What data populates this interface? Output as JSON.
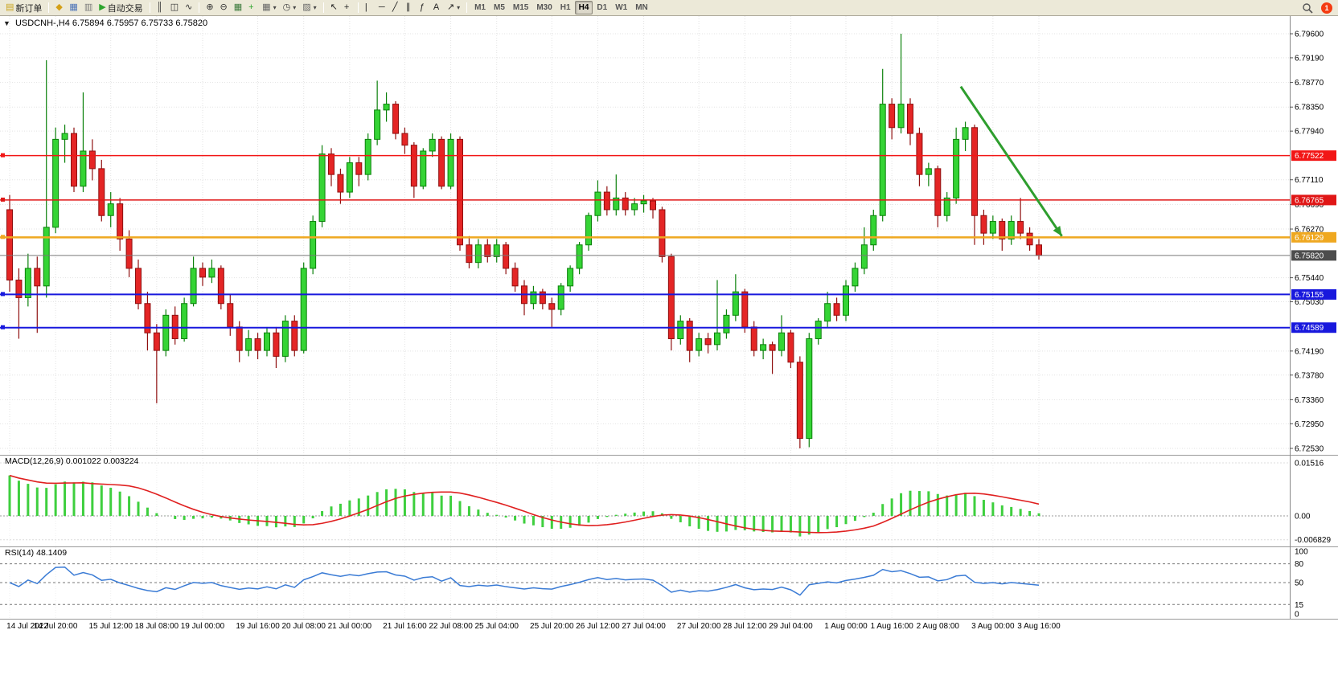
{
  "toolbar": {
    "badge": "1",
    "items": [
      {
        "type": "btn",
        "name": "new-order-button",
        "glyph": "▤",
        "color": "#caa41c",
        "label": "新订单"
      },
      {
        "type": "sep"
      },
      {
        "type": "btn",
        "name": "quick-launch-button",
        "glyph": "◆",
        "color": "#d4a017"
      },
      {
        "type": "btn",
        "name": "charts-window-button",
        "glyph": "▦",
        "color": "#4a72b8"
      },
      {
        "type": "btn",
        "name": "market-watch-button",
        "glyph": "▥",
        "color": "#7a7a7a"
      },
      {
        "type": "btn",
        "name": "auto-trading-button",
        "glyph": "▶",
        "color": "#2ea52e",
        "label": "自动交易"
      },
      {
        "type": "sep"
      },
      {
        "type": "btn",
        "name": "bar-chart-button",
        "glyph": "║",
        "color": "#333"
      },
      {
        "type": "btn",
        "name": "candlestick-chart-button",
        "glyph": "◫",
        "color": "#333"
      },
      {
        "type": "btn",
        "name": "line-chart-button",
        "glyph": "∿",
        "color": "#333"
      },
      {
        "type": "sep"
      },
      {
        "type": "btn",
        "name": "zoom-in-button",
        "glyph": "⊕",
        "color": "#333"
      },
      {
        "type": "btn",
        "name": "zoom-out-button",
        "glyph": "⊖",
        "color": "#333"
      },
      {
        "type": "btn",
        "name": "tile-windows-button",
        "glyph": "▦",
        "color": "#3b7a3b"
      },
      {
        "type": "btn",
        "name": "indicators-button",
        "glyph": "+",
        "color": "#2ea52e"
      },
      {
        "type": "btn",
        "name": "new-chart-dropdown",
        "glyph": "▦",
        "color": "#666",
        "dropdown": "▾"
      },
      {
        "type": "btn",
        "name": "periods-dropdown",
        "glyph": "◷",
        "color": "#444",
        "dropdown": "▾"
      },
      {
        "type": "btn",
        "name": "templates-dropdown",
        "glyph": "▨",
        "color": "#666",
        "dropdown": "▾"
      },
      {
        "type": "sep"
      },
      {
        "type": "btn",
        "name": "cursor-button",
        "glyph": "↖",
        "color": "#222"
      },
      {
        "type": "btn",
        "name": "crosshair-button",
        "glyph": "+",
        "color": "#222"
      },
      {
        "type": "sep"
      },
      {
        "type": "btn",
        "name": "vertical-line-button",
        "glyph": "|",
        "color": "#222"
      },
      {
        "type": "btn",
        "name": "horizontal-line-button",
        "glyph": "─",
        "color": "#222"
      },
      {
        "type": "btn",
        "name": "trendline-button",
        "glyph": "╱",
        "color": "#222"
      },
      {
        "type": "btn",
        "name": "channel-button",
        "glyph": "∥",
        "color": "#222"
      },
      {
        "type": "btn",
        "name": "fibonacci-button",
        "glyph": "ƒ",
        "color": "#222"
      },
      {
        "type": "btn",
        "name": "text-button",
        "glyph": "A",
        "color": "#222"
      },
      {
        "type": "btn",
        "name": "arrows-dropdown",
        "glyph": "↗",
        "color": "#222",
        "dropdown": "▾"
      },
      {
        "type": "sep"
      },
      {
        "type": "tf",
        "name": "timeframe-m1",
        "label": "M1"
      },
      {
        "type": "tf",
        "name": "timeframe-m5",
        "label": "M5"
      },
      {
        "type": "tf",
        "name": "timeframe-m15",
        "label": "M15"
      },
      {
        "type": "tf",
        "name": "timeframe-m30",
        "label": "M30"
      },
      {
        "type": "tf",
        "name": "timeframe-h1",
        "label": "H1"
      },
      {
        "type": "tf",
        "name": "timeframe-h4",
        "label": "H4",
        "active": true
      },
      {
        "type": "tf",
        "name": "timeframe-d1",
        "label": "D1"
      },
      {
        "type": "tf",
        "name": "timeframe-w1",
        "label": "W1"
      },
      {
        "type": "tf",
        "name": "timeframe-mn",
        "label": "MN"
      }
    ]
  },
  "chart_data": {
    "type": "candlestick",
    "title": "USDCNH-,H4",
    "ohlc": "6.75894 6.75957 6.75733 6.75820",
    "symbol": "USDCNH-",
    "period": "H4",
    "colors": {
      "up": "#35d435",
      "up_border": "#0a800a",
      "down": "#e42525",
      "down_border": "#8f1010",
      "grid": "#e3e3e3"
    },
    "price_ticks": [
      "6.79600",
      "6.79190",
      "6.78770",
      "6.78350",
      "6.77940",
      "6.77110",
      "6.76690",
      "6.76270",
      "6.75440",
      "6.75030",
      "6.74190",
      "6.73780",
      "6.73360",
      "6.72950",
      "6.72530"
    ],
    "hlines": [
      {
        "price": 6.77522,
        "label": "6.77522",
        "color": "#f21616",
        "width": 1.5
      },
      {
        "price": 6.76765,
        "label": "6.76765",
        "color": "#e01616",
        "width": 1.5
      },
      {
        "price": 6.76129,
        "label": "6.76129",
        "color": "#efa820",
        "width": 2.5
      },
      {
        "price": 6.75155,
        "label": "6.75155",
        "color": "#1818dd",
        "width": 2
      },
      {
        "price": 6.74589,
        "label": "6.74589",
        "color": "#1818dd",
        "width": 2
      }
    ],
    "current_price": {
      "value": "6.75820",
      "badge_color": "#4d4d4d",
      "line_color": "#777777"
    },
    "arrow": {
      "from_bar": 103.5,
      "from_price": 6.787,
      "to_bar": 114.5,
      "to_price": 6.7615,
      "color": "#2e9e2e"
    },
    "time_labels": [
      {
        "text": "14 Jul 2022",
        "bar": 0
      },
      {
        "text": "14 Jul 20:00",
        "bar": 5
      },
      {
        "text": "15 Jul 12:00",
        "bar": 11
      },
      {
        "text": "18 Jul 08:00",
        "bar": 16
      },
      {
        "text": "19 Jul 00:00",
        "bar": 21
      },
      {
        "text": "19 Jul 16:00",
        "bar": 27
      },
      {
        "text": "20 Jul 08:00",
        "bar": 32
      },
      {
        "text": "21 Jul 00:00",
        "bar": 37
      },
      {
        "text": "21 Jul 16:00",
        "bar": 43
      },
      {
        "text": "22 Jul 08:00",
        "bar": 48
      },
      {
        "text": "25 Jul 04:00",
        "bar": 53
      },
      {
        "text": "25 Jul 20:00",
        "bar": 59
      },
      {
        "text": "26 Jul 12:00",
        "bar": 64
      },
      {
        "text": "27 Jul 04:00",
        "bar": 69
      },
      {
        "text": "27 Jul 20:00",
        "bar": 75
      },
      {
        "text": "28 Jul 12:00",
        "bar": 80
      },
      {
        "text": "29 Jul 04:00",
        "bar": 85
      },
      {
        "text": "1 Aug 00:00",
        "bar": 91
      },
      {
        "text": "1 Aug 16:00",
        "bar": 96
      },
      {
        "text": "2 Aug 08:00",
        "bar": 101
      },
      {
        "text": "3 Aug 00:00",
        "bar": 107
      },
      {
        "text": "3 Aug 16:00",
        "bar": 112
      }
    ],
    "candles": [
      [
        6.766,
        6.7685,
        6.752,
        6.754
      ],
      [
        6.754,
        6.756,
        6.744,
        6.751
      ],
      [
        6.751,
        6.7585,
        6.7495,
        6.756
      ],
      [
        6.756,
        6.758,
        6.745,
        6.753
      ],
      [
        6.753,
        6.7915,
        6.751,
        6.763
      ],
      [
        6.763,
        6.78,
        6.762,
        6.778
      ],
      [
        6.778,
        6.7805,
        6.774,
        6.779
      ],
      [
        6.779,
        6.78,
        6.769,
        6.77
      ],
      [
        6.77,
        6.786,
        6.769,
        6.776
      ],
      [
        6.776,
        6.778,
        6.771,
        6.773
      ],
      [
        6.773,
        6.7745,
        6.764,
        6.765
      ],
      [
        6.765,
        6.769,
        6.763,
        6.767
      ],
      [
        6.767,
        6.768,
        6.759,
        6.761
      ],
      [
        6.761,
        6.7625,
        6.7545,
        6.756
      ],
      [
        6.756,
        6.7575,
        6.749,
        6.75
      ],
      [
        6.75,
        6.752,
        6.742,
        6.745
      ],
      [
        6.745,
        6.7465,
        6.733,
        6.742
      ],
      [
        6.742,
        6.749,
        6.741,
        6.748
      ],
      [
        6.748,
        6.7495,
        6.743,
        6.744
      ],
      [
        6.744,
        6.751,
        6.7435,
        6.75
      ],
      [
        6.75,
        6.758,
        6.7495,
        6.756
      ],
      [
        6.756,
        6.757,
        6.753,
        6.7545
      ],
      [
        6.7545,
        6.7575,
        6.7535,
        6.756
      ],
      [
        6.756,
        6.7565,
        6.749,
        6.75
      ],
      [
        6.75,
        6.7515,
        6.7445,
        6.746
      ],
      [
        6.746,
        6.747,
        6.74,
        6.742
      ],
      [
        6.742,
        6.7455,
        6.741,
        6.744
      ],
      [
        6.744,
        6.745,
        6.7405,
        6.742
      ],
      [
        6.742,
        6.746,
        6.741,
        6.745
      ],
      [
        6.745,
        6.746,
        6.739,
        6.741
      ],
      [
        6.741,
        6.748,
        6.74,
        6.747
      ],
      [
        6.747,
        6.748,
        6.741,
        6.742
      ],
      [
        6.742,
        6.757,
        6.7415,
        6.756
      ],
      [
        6.756,
        6.765,
        6.755,
        6.764
      ],
      [
        6.764,
        6.777,
        6.763,
        6.7755
      ],
      [
        6.7755,
        6.7765,
        6.77,
        6.772
      ],
      [
        6.772,
        6.773,
        6.767,
        6.769
      ],
      [
        6.769,
        6.775,
        6.768,
        6.774
      ],
      [
        6.774,
        6.775,
        6.77,
        6.772
      ],
      [
        6.772,
        6.779,
        6.771,
        6.778
      ],
      [
        6.778,
        6.788,
        6.777,
        6.783
      ],
      [
        6.783,
        6.786,
        6.781,
        6.784
      ],
      [
        6.784,
        6.7845,
        6.778,
        6.779
      ],
      [
        6.779,
        6.78,
        6.7755,
        6.777
      ],
      [
        6.777,
        6.7775,
        6.768,
        6.77
      ],
      [
        6.77,
        6.7765,
        6.7695,
        6.776
      ],
      [
        6.776,
        6.779,
        6.775,
        6.778
      ],
      [
        6.778,
        6.7785,
        6.7695,
        6.77
      ],
      [
        6.77,
        6.779,
        6.7695,
        6.778
      ],
      [
        6.778,
        6.7785,
        6.759,
        6.76
      ],
      [
        6.76,
        6.7615,
        6.756,
        6.757
      ],
      [
        6.757,
        6.761,
        6.756,
        6.76
      ],
      [
        6.76,
        6.761,
        6.757,
        6.758
      ],
      [
        6.758,
        6.761,
        6.757,
        6.76
      ],
      [
        6.76,
        6.7605,
        6.755,
        6.756
      ],
      [
        6.756,
        6.757,
        6.752,
        6.753
      ],
      [
        6.753,
        6.754,
        6.748,
        6.75
      ],
      [
        6.75,
        6.753,
        6.749,
        6.752
      ],
      [
        6.752,
        6.7525,
        6.749,
        6.75
      ],
      [
        6.75,
        6.751,
        6.746,
        6.749
      ],
      [
        6.749,
        6.7535,
        6.748,
        6.753
      ],
      [
        6.753,
        6.7565,
        6.752,
        6.756
      ],
      [
        6.756,
        6.7605,
        6.755,
        6.76
      ],
      [
        6.76,
        6.7655,
        6.759,
        6.765
      ],
      [
        6.765,
        6.771,
        6.764,
        6.769
      ],
      [
        6.769,
        6.77,
        6.765,
        6.766
      ],
      [
        6.766,
        6.772,
        6.765,
        6.768
      ],
      [
        6.768,
        6.769,
        6.765,
        6.766
      ],
      [
        6.766,
        6.768,
        6.765,
        6.767
      ],
      [
        6.767,
        6.7685,
        6.7655,
        6.7675
      ],
      [
        6.7675,
        6.768,
        6.7645,
        6.766
      ],
      [
        6.766,
        6.7665,
        6.757,
        6.758
      ],
      [
        6.758,
        6.7585,
        6.742,
        6.744
      ],
      [
        6.744,
        6.748,
        6.743,
        6.747
      ],
      [
        6.747,
        6.7475,
        6.74,
        6.742
      ],
      [
        6.742,
        6.745,
        6.741,
        6.744
      ],
      [
        6.744,
        6.745,
        6.7415,
        6.743
      ],
      [
        6.743,
        6.754,
        6.742,
        6.745
      ],
      [
        6.745,
        6.749,
        6.744,
        6.748
      ],
      [
        6.748,
        6.755,
        6.747,
        6.752
      ],
      [
        6.752,
        6.7525,
        6.745,
        6.746
      ],
      [
        6.746,
        6.747,
        6.741,
        6.742
      ],
      [
        6.742,
        6.744,
        6.7405,
        6.743
      ],
      [
        6.743,
        6.7435,
        6.738,
        6.742
      ],
      [
        6.742,
        6.748,
        6.741,
        6.745
      ],
      [
        6.745,
        6.7455,
        6.739,
        6.74
      ],
      [
        6.74,
        6.741,
        6.7253,
        6.727
      ],
      [
        6.727,
        6.745,
        6.7255,
        6.744
      ],
      [
        6.744,
        6.7475,
        6.743,
        6.747
      ],
      [
        6.747,
        6.752,
        6.746,
        6.75
      ],
      [
        6.75,
        6.751,
        6.747,
        6.748
      ],
      [
        6.748,
        6.754,
        6.747,
        6.753
      ],
      [
        6.753,
        6.757,
        6.752,
        6.756
      ],
      [
        6.756,
        6.763,
        6.755,
        6.76
      ],
      [
        6.76,
        6.766,
        6.759,
        6.765
      ],
      [
        6.765,
        6.79,
        6.764,
        6.784
      ],
      [
        6.784,
        6.785,
        6.778,
        6.78
      ],
      [
        6.78,
        6.796,
        6.779,
        6.784
      ],
      [
        6.784,
        6.785,
        6.777,
        6.779
      ],
      [
        6.779,
        6.78,
        6.77,
        6.772
      ],
      [
        6.772,
        6.774,
        6.77,
        6.773
      ],
      [
        6.773,
        6.7735,
        6.763,
        6.765
      ],
      [
        6.765,
        6.769,
        6.764,
        6.768
      ],
      [
        6.768,
        6.78,
        6.767,
        6.778
      ],
      [
        6.778,
        6.781,
        6.776,
        6.78
      ],
      [
        6.78,
        6.7805,
        6.76,
        6.765
      ],
      [
        6.765,
        6.766,
        6.76,
        6.762
      ],
      [
        6.762,
        6.765,
        6.761,
        6.764
      ],
      [
        6.764,
        6.7645,
        6.759,
        6.761
      ],
      [
        6.761,
        6.765,
        6.76,
        6.764
      ],
      [
        6.764,
        6.768,
        6.761,
        6.762
      ],
      [
        6.762,
        6.763,
        6.759,
        6.76
      ],
      [
        6.76,
        6.761,
        6.7575,
        6.7582
      ]
    ],
    "macd": {
      "title": "MACD(12,26,9)",
      "values": "0.001022 0.003224",
      "params": [
        12,
        26,
        9
      ],
      "ticks": [
        "0.01516",
        "0.00",
        "-0.006829"
      ],
      "max": 0.01516,
      "min": -0.006829,
      "up_color": "#3ecf3e",
      "signal_color": "#e02020"
    },
    "rsi": {
      "title": "RSI(14)",
      "value": "48.1409",
      "period": 14,
      "ticks": [
        "100",
        "80",
        "50",
        "15",
        "0"
      ],
      "levels": [
        80,
        50,
        15
      ],
      "line_color": "#3a7bd5"
    }
  }
}
